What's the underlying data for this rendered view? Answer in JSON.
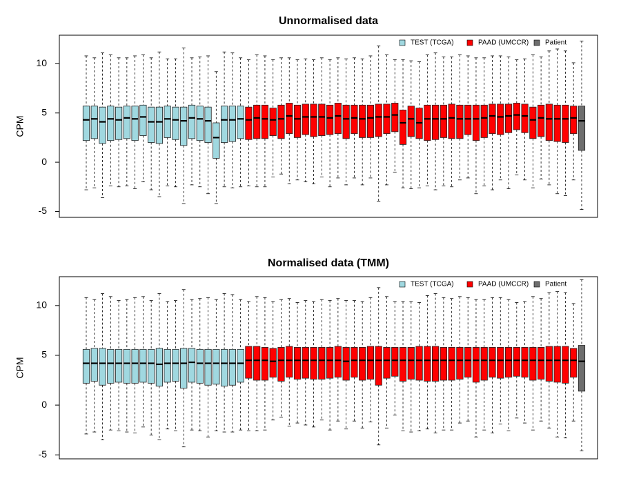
{
  "chart_data": [
    {
      "type": "box",
      "title": "Unnormalised data",
      "ylabel": "CPM",
      "ylim": [
        -5.6,
        12.9
      ],
      "yticks": [
        -5,
        0,
        5,
        10
      ],
      "legend": {
        "placement": "top-right",
        "entries": [
          {
            "label": "TEST (TCGA)",
            "color": "#a0d8e0"
          },
          {
            "label": "PAAD (UMCCR)",
            "color": "#ff0000"
          },
          {
            "label": "Patient",
            "color": "#6e6e6e"
          }
        ]
      },
      "groups": [
        {
          "name": "TEST (TCGA)",
          "color": "#a0d8e0",
          "count": 20,
          "q1": [
            2.2,
            2.4,
            1.9,
            2.2,
            2.3,
            2.4,
            2.2,
            2.7,
            2.0,
            1.9,
            2.5,
            2.3,
            1.7,
            2.4,
            2.2,
            2.0,
            0.4,
            2.0,
            2.1,
            2.4
          ],
          "median": [
            4.3,
            4.4,
            4.1,
            4.4,
            4.3,
            4.5,
            4.4,
            4.6,
            4.1,
            4.1,
            4.4,
            4.3,
            4.2,
            4.5,
            4.4,
            4.2,
            2.5,
            4.3,
            4.3,
            4.4
          ],
          "q3": [
            5.7,
            5.7,
            5.6,
            5.7,
            5.6,
            5.7,
            5.7,
            5.8,
            5.6,
            5.6,
            5.7,
            5.6,
            5.6,
            5.8,
            5.7,
            5.6,
            4.0,
            5.7,
            5.7,
            5.7
          ],
          "low": [
            -2.8,
            -2.6,
            -3.6,
            -2.4,
            -2.5,
            -2.4,
            -2.7,
            -2.0,
            -2.8,
            -3.5,
            -2.4,
            -2.5,
            -4.2,
            -2.3,
            -2.5,
            -3.2,
            -4.2,
            -2.5,
            -2.6,
            -2.5
          ],
          "high": [
            10.8,
            10.6,
            11.1,
            10.9,
            10.6,
            10.6,
            10.8,
            10.9,
            10.6,
            11.2,
            10.5,
            10.5,
            11.6,
            10.6,
            10.7,
            10.8,
            9.2,
            11.2,
            11.1,
            10.6
          ]
        },
        {
          "name": "PAAD (UMCCR)",
          "color": "#ff0000",
          "count": 41,
          "q1": [
            2.3,
            2.4,
            2.4,
            2.7,
            2.4,
            2.9,
            2.5,
            2.8,
            2.6,
            2.7,
            2.8,
            2.9,
            2.4,
            2.9,
            2.5,
            2.5,
            2.6,
            2.9,
            3.1,
            1.8,
            2.6,
            2.4,
            2.2,
            2.3,
            2.5,
            2.4,
            2.4,
            2.8,
            2.2,
            2.5,
            2.9,
            2.8,
            3.0,
            3.3,
            3.0,
            2.4,
            2.6,
            2.2,
            2.1,
            2.0,
            2.9
          ],
          "median": [
            4.3,
            4.5,
            4.4,
            4.3,
            4.4,
            4.7,
            4.4,
            4.6,
            4.6,
            4.6,
            4.5,
            4.7,
            4.4,
            4.5,
            4.4,
            4.5,
            4.6,
            4.6,
            4.8,
            4.0,
            4.4,
            4.0,
            4.4,
            4.4,
            4.4,
            4.5,
            4.4,
            4.4,
            4.4,
            4.5,
            4.7,
            4.6,
            4.7,
            4.8,
            4.7,
            4.3,
            4.5,
            4.4,
            4.4,
            4.4,
            4.5
          ],
          "q3": [
            5.6,
            5.8,
            5.8,
            5.5,
            5.8,
            6.0,
            5.8,
            5.9,
            5.9,
            5.9,
            5.8,
            6.0,
            5.8,
            5.8,
            5.8,
            5.8,
            5.9,
            5.9,
            6.0,
            5.3,
            5.7,
            5.5,
            5.8,
            5.8,
            5.8,
            5.9,
            5.8,
            5.8,
            5.8,
            5.8,
            5.9,
            5.9,
            5.9,
            6.0,
            5.9,
            5.6,
            5.8,
            5.9,
            5.8,
            5.8,
            5.7
          ],
          "low": [
            -2.4,
            -2.5,
            -2.5,
            -1.5,
            -1.2,
            -2.2,
            -1.8,
            -2.0,
            -2.2,
            -1.5,
            -2.5,
            -1.6,
            -2.3,
            -1.6,
            -2.3,
            -1.6,
            -4.0,
            -2.3,
            -1.0,
            -2.6,
            -2.7,
            -2.6,
            -2.4,
            -2.8,
            -2.4,
            -2.5,
            -1.8,
            -1.6,
            -3.2,
            -2.4,
            -2.8,
            -1.8,
            -2.7,
            -1.3,
            -1.8,
            -2.6,
            -1.7,
            -2.3,
            -3.2,
            -3.4,
            -1.8
          ],
          "high": [
            10.4,
            10.9,
            10.8,
            10.4,
            10.6,
            10.6,
            10.4,
            10.5,
            10.4,
            10.6,
            10.4,
            10.6,
            10.5,
            10.6,
            10.5,
            10.8,
            11.8,
            10.9,
            10.4,
            10.4,
            10.3,
            10.2,
            10.9,
            11.1,
            10.7,
            10.7,
            10.9,
            10.8,
            10.6,
            10.6,
            10.8,
            10.8,
            10.7,
            10.4,
            10.5,
            10.9,
            10.7,
            11.3,
            11.5,
            11.3,
            10.1
          ]
        },
        {
          "name": "Patient",
          "color": "#6e6e6e",
          "count": 1,
          "q1": [
            1.2
          ],
          "median": [
            4.2
          ],
          "q3": [
            5.7
          ],
          "low": [
            -4.8
          ],
          "high": [
            12.3
          ]
        }
      ]
    },
    {
      "type": "box",
      "title": "Normalised data (TMM)",
      "ylabel": "CPM",
      "ylim": [
        -5.4,
        12.9
      ],
      "yticks": [
        -5,
        0,
        5,
        10
      ],
      "legend": {
        "placement": "top-right",
        "entries": [
          {
            "label": "TEST (TCGA)",
            "color": "#a0d8e0"
          },
          {
            "label": "PAAD (UMCCR)",
            "color": "#ff0000"
          },
          {
            "label": "Patient",
            "color": "#6e6e6e"
          }
        ]
      },
      "groups": [
        {
          "name": "TEST (TCGA)",
          "color": "#a0d8e0",
          "count": 20,
          "q1": [
            2.2,
            2.4,
            2.0,
            2.2,
            2.3,
            2.2,
            2.2,
            2.3,
            2.2,
            1.9,
            2.3,
            2.4,
            1.7,
            2.3,
            2.2,
            2.0,
            2.1,
            1.9,
            2.0,
            2.3
          ],
          "median": [
            4.2,
            4.2,
            4.2,
            4.2,
            4.2,
            4.2,
            4.2,
            4.2,
            4.2,
            4.1,
            4.2,
            4.2,
            4.2,
            4.3,
            4.2,
            4.2,
            4.2,
            4.2,
            4.2,
            4.2
          ],
          "q3": [
            5.6,
            5.7,
            5.7,
            5.6,
            5.6,
            5.6,
            5.6,
            5.6,
            5.6,
            5.7,
            5.6,
            5.6,
            5.7,
            5.7,
            5.6,
            5.6,
            5.6,
            5.6,
            5.6,
            5.6
          ],
          "low": [
            -2.9,
            -2.7,
            -3.5,
            -2.5,
            -2.6,
            -2.7,
            -2.8,
            -2.2,
            -3.0,
            -3.5,
            -2.4,
            -2.6,
            -4.2,
            -2.5,
            -2.6,
            -3.2,
            -2.6,
            -2.7,
            -2.7,
            -2.5
          ],
          "high": [
            10.8,
            10.6,
            11.2,
            10.9,
            10.5,
            10.6,
            10.8,
            10.9,
            10.5,
            11.2,
            10.4,
            10.5,
            11.6,
            10.6,
            10.7,
            10.8,
            10.6,
            11.2,
            11.1,
            10.6
          ]
        },
        {
          "name": "PAAD (UMCCR)",
          "color": "#ff0000",
          "count": 41,
          "q1": [
            2.7,
            2.5,
            2.5,
            2.8,
            2.4,
            2.8,
            2.6,
            2.7,
            2.6,
            2.6,
            2.7,
            2.8,
            2.5,
            2.8,
            2.5,
            2.6,
            2.0,
            2.7,
            2.9,
            2.4,
            2.6,
            2.5,
            2.4,
            2.4,
            2.5,
            2.5,
            2.6,
            2.8,
            2.3,
            2.5,
            2.8,
            2.7,
            2.8,
            2.9,
            2.8,
            2.5,
            2.6,
            2.4,
            2.3,
            2.2,
            2.8
          ],
          "median": [
            4.5,
            4.5,
            4.5,
            4.4,
            4.5,
            4.5,
            4.5,
            4.5,
            4.5,
            4.5,
            4.5,
            4.5,
            4.4,
            4.5,
            4.5,
            4.5,
            4.5,
            4.5,
            4.5,
            4.5,
            4.5,
            4.5,
            4.5,
            4.5,
            4.5,
            4.5,
            4.5,
            4.5,
            4.5,
            4.5,
            4.5,
            4.5,
            4.5,
            4.5,
            4.5,
            4.5,
            4.5,
            4.5,
            4.5,
            4.5,
            4.5
          ],
          "q3": [
            5.9,
            5.9,
            5.8,
            5.7,
            5.8,
            5.9,
            5.8,
            5.8,
            5.8,
            5.8,
            5.8,
            5.9,
            5.8,
            5.8,
            5.8,
            5.9,
            5.9,
            5.8,
            5.8,
            5.8,
            5.8,
            5.9,
            5.9,
            5.9,
            5.8,
            5.8,
            5.8,
            5.8,
            5.8,
            5.8,
            5.8,
            5.8,
            5.8,
            5.8,
            5.8,
            5.8,
            5.8,
            5.9,
            5.9,
            5.9,
            5.7
          ],
          "low": [
            -2.6,
            -2.6,
            -2.5,
            -1.5,
            -1.2,
            -2.1,
            -1.8,
            -2.0,
            -2.2,
            -1.5,
            -2.5,
            -1.6,
            -2.4,
            -1.6,
            -2.3,
            -1.7,
            -4.0,
            -2.3,
            -1.0,
            -2.6,
            -2.7,
            -2.6,
            -2.4,
            -2.8,
            -2.5,
            -2.5,
            -1.8,
            -1.6,
            -3.2,
            -2.5,
            -2.8,
            -1.9,
            -2.6,
            -1.3,
            -1.8,
            -2.5,
            -1.6,
            -2.3,
            -3.2,
            -3.3,
            -1.6
          ],
          "high": [
            10.4,
            10.9,
            10.8,
            10.4,
            10.6,
            10.7,
            10.3,
            10.5,
            10.4,
            10.6,
            10.5,
            10.7,
            10.5,
            10.5,
            10.4,
            10.8,
            11.8,
            10.9,
            10.4,
            10.4,
            10.4,
            10.3,
            11.0,
            11.2,
            10.8,
            10.7,
            10.9,
            10.8,
            10.6,
            10.6,
            10.8,
            10.8,
            10.6,
            10.3,
            10.4,
            10.9,
            10.7,
            11.3,
            11.4,
            11.3,
            10.2
          ]
        },
        {
          "name": "Patient",
          "color": "#6e6e6e",
          "count": 1,
          "q1": [
            1.4
          ],
          "median": [
            4.4
          ],
          "q3": [
            6.0
          ],
          "low": [
            -4.6
          ],
          "high": [
            12.6
          ]
        }
      ]
    }
  ]
}
